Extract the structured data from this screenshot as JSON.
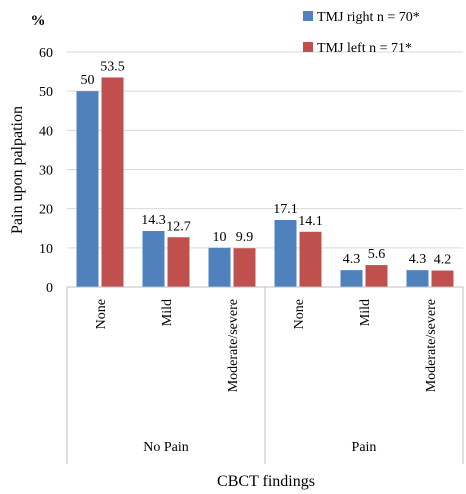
{
  "chart_data": {
    "type": "bar",
    "unit_label": "%",
    "xlabel": "CBCT findings",
    "ylabel": "Pain upon palpation",
    "ylim": [
      0,
      60
    ],
    "yticks": [
      0,
      10,
      20,
      30,
      40,
      50,
      60
    ],
    "grid": true,
    "legend_position": "top-right",
    "groups": [
      {
        "label": "No Pain",
        "categories": [
          "None",
          "Mild",
          "Moderate/severe"
        ]
      },
      {
        "label": "Pain",
        "categories": [
          "None",
          "Mild",
          "Moderate/severe"
        ]
      }
    ],
    "categories": [
      "None",
      "Mild",
      "Moderate/severe",
      "None",
      "Mild",
      "Moderate/severe"
    ],
    "series": [
      {
        "name": "TMJ right n = 70*",
        "color": "#4f81bd",
        "values": [
          50,
          14.3,
          10,
          17.1,
          4.3,
          4.3
        ],
        "labels": [
          "50",
          "14.3",
          "10",
          "17.1",
          "4.3",
          "4.3"
        ]
      },
      {
        "name": "TMJ left n = 71*",
        "color": "#c0504d",
        "values": [
          53.5,
          12.7,
          9.9,
          14.1,
          5.6,
          4.2
        ],
        "labels": [
          "53.5",
          "12.7",
          "9.9",
          "14.1",
          "5.6",
          "4.2"
        ]
      }
    ]
  }
}
